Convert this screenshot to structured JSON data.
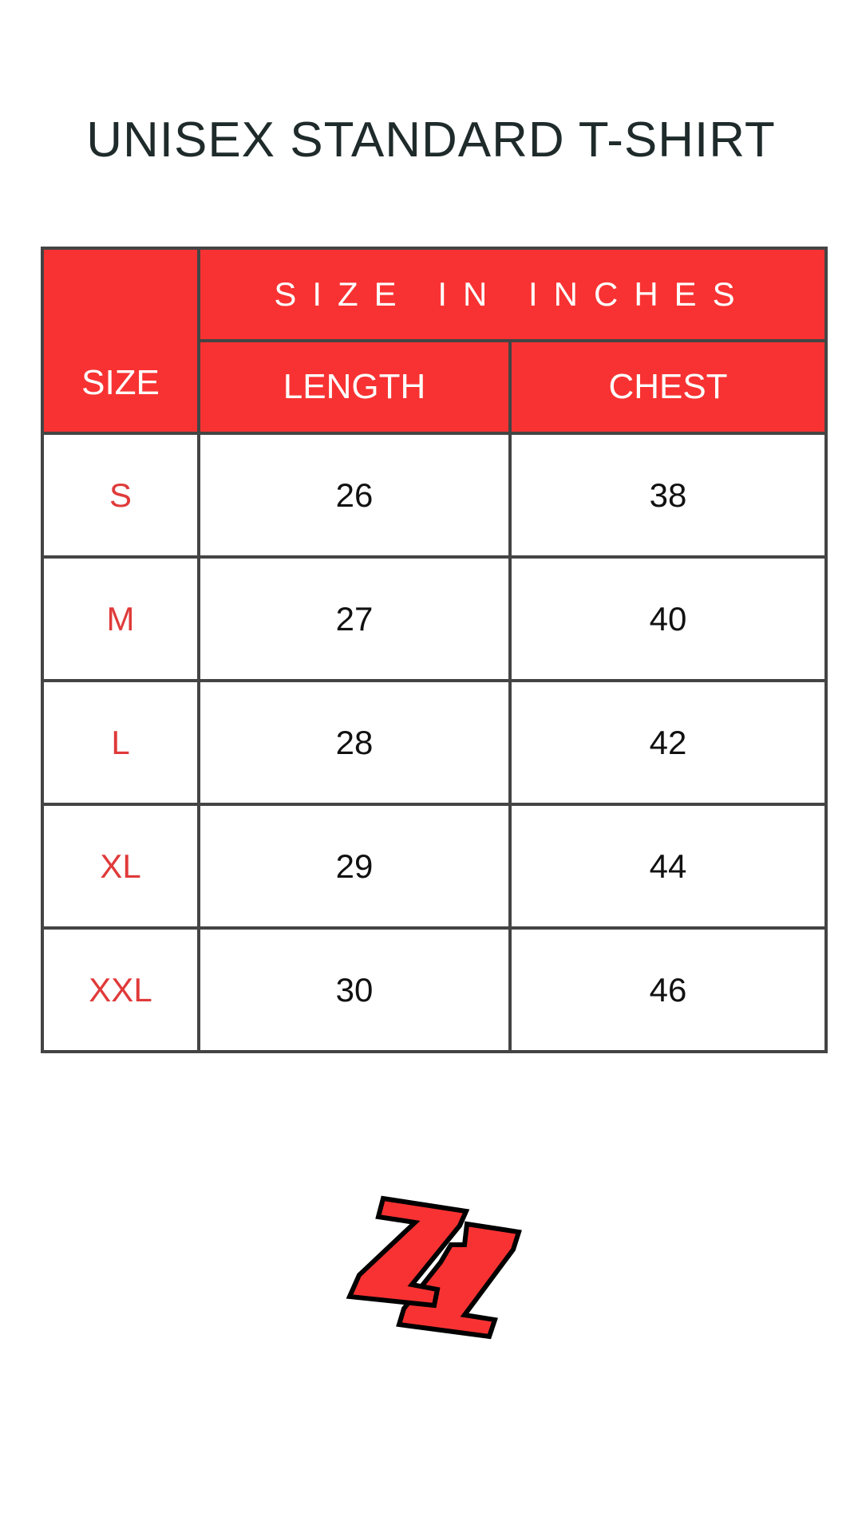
{
  "title": "UNISEX STANDARD T-SHIRT",
  "header": {
    "size": "SIZE",
    "group": "SIZE IN INCHES",
    "length": "LENGTH",
    "chest": "CHEST"
  },
  "rows": [
    {
      "size": "S",
      "length": "26",
      "chest": "38"
    },
    {
      "size": "M",
      "length": "27",
      "chest": "40"
    },
    {
      "size": "L",
      "length": "28",
      "chest": "42"
    },
    {
      "size": "XL",
      "length": "29",
      "chest": "44"
    },
    {
      "size": "XXL",
      "length": "30",
      "chest": "46"
    }
  ],
  "colors": {
    "accent": "#f83232",
    "border": "#444444",
    "size_text": "#e03a3a"
  },
  "logo": {
    "icon": "zz-logo",
    "text": "ZZ"
  }
}
